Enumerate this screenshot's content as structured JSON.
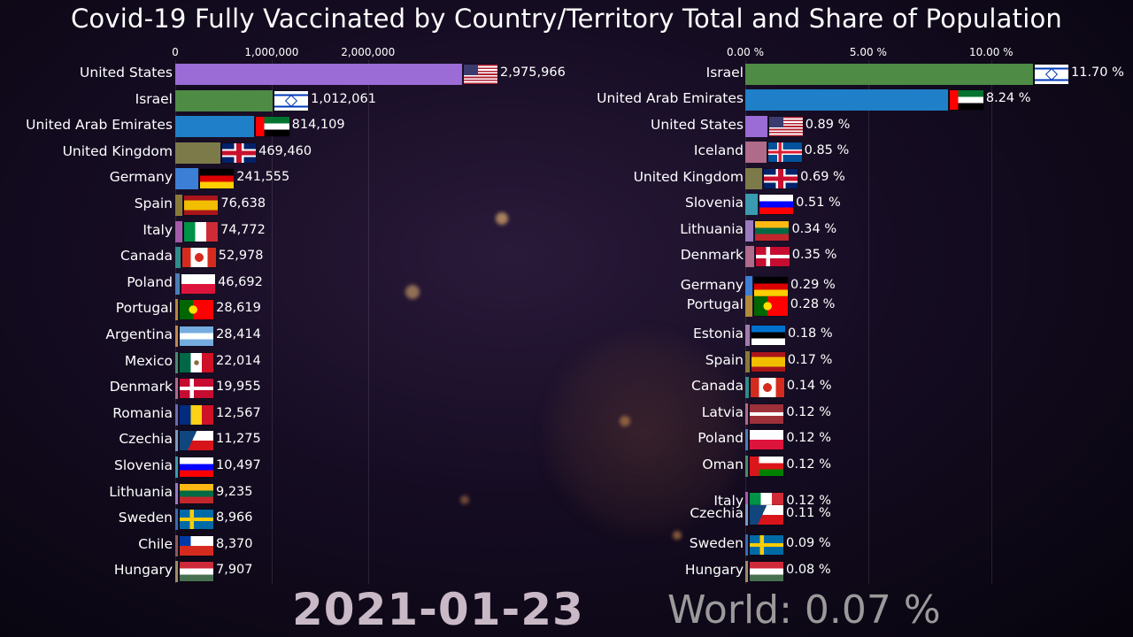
{
  "title": "Covid-19 Fully Vaccinated by Country/Territory Total and Share of Population",
  "date": "2021-01-23",
  "world": "World: 0.07 %",
  "chart_data": [
    {
      "type": "bar",
      "orientation": "horizontal",
      "xlim": [
        0,
        3000000
      ],
      "ticks": [
        {
          "value": 0,
          "label": "0"
        },
        {
          "value": 1000000,
          "label": "1,000,000"
        },
        {
          "value": 2000000,
          "label": "2,000,000"
        }
      ],
      "rows": [
        {
          "country": "United States",
          "value": 2975966,
          "label": "2,975,966",
          "color": "#9b6bd6",
          "flag": "us"
        },
        {
          "country": "Israel",
          "value": 1012061,
          "label": "1,012,061",
          "color": "#4e8b45",
          "flag": "il"
        },
        {
          "country": "United Arab Emirates",
          "value": 814109,
          "label": "814,109",
          "color": "#1f7fc8",
          "flag": "ae"
        },
        {
          "country": "United Kingdom",
          "value": 469460,
          "label": "469,460",
          "color": "#7d7a4a",
          "flag": "gb"
        },
        {
          "country": "Germany",
          "value": 241555,
          "label": "241,555",
          "color": "#3b7fd6",
          "flag": "de"
        },
        {
          "country": "Spain",
          "value": 76638,
          "label": "76,638",
          "color": "#8a7a3a",
          "flag": "es"
        },
        {
          "country": "Italy",
          "value": 74772,
          "label": "74,772",
          "color": "#a45aa8",
          "flag": "it"
        },
        {
          "country": "Canada",
          "value": 52978,
          "label": "52,978",
          "color": "#2e8c8c",
          "flag": "ca"
        },
        {
          "country": "Poland",
          "value": 46692,
          "label": "46,692",
          "color": "#4a7fb5",
          "flag": "pl"
        },
        {
          "country": "Portugal",
          "value": 28619,
          "label": "28,619",
          "color": "#b28a3a",
          "flag": "pt"
        },
        {
          "country": "Argentina",
          "value": 28414,
          "label": "28,414",
          "color": "#c08a4a",
          "flag": "ar"
        },
        {
          "country": "Mexico",
          "value": 22014,
          "label": "22,014",
          "color": "#4a8a6a",
          "flag": "mx"
        },
        {
          "country": "Denmark",
          "value": 19955,
          "label": "19,955",
          "color": "#b06a8a",
          "flag": "dk"
        },
        {
          "country": "Romania",
          "value": 12567,
          "label": "12,567",
          "color": "#6a6ab0",
          "flag": "ro"
        },
        {
          "country": "Czechia",
          "value": 11275,
          "label": "11,275",
          "color": "#7a9ac0",
          "flag": "cz"
        },
        {
          "country": "Slovenia",
          "value": 10497,
          "label": "10,497",
          "color": "#3a9ab0",
          "flag": "si"
        },
        {
          "country": "Lithuania",
          "value": 9235,
          "label": "9,235",
          "color": "#9a7ac0",
          "flag": "lt"
        },
        {
          "country": "Sweden",
          "value": 8966,
          "label": "8,966",
          "color": "#3a6ab0",
          "flag": "se"
        },
        {
          "country": "Chile",
          "value": 8370,
          "label": "8,370",
          "color": "#8a5a5a",
          "flag": "cl"
        },
        {
          "country": "Hungary",
          "value": 7907,
          "label": "7,907",
          "color": "#a08a6a",
          "flag": "hu"
        }
      ]
    },
    {
      "type": "bar",
      "orientation": "horizontal",
      "xlim": [
        0,
        12.0
      ],
      "ticks": [
        {
          "value": 0,
          "label": "0.00 %"
        },
        {
          "value": 5,
          "label": "5.00 %"
        },
        {
          "value": 10,
          "label": "10.00 %"
        }
      ],
      "rows": [
        {
          "country": "Israel",
          "value": 11.7,
          "label": "11.70 %",
          "color": "#4e8b45",
          "flag": "il"
        },
        {
          "country": "United Arab Emirates",
          "value": 8.24,
          "label": "8.24 %",
          "color": "#1f7fc8",
          "flag": "ae"
        },
        {
          "country": "United States",
          "value": 0.89,
          "label": "0.89 %",
          "color": "#9b6bd6",
          "flag": "us"
        },
        {
          "country": "Iceland",
          "value": 0.85,
          "label": "0.85 %",
          "color": "#b06a8a",
          "flag": "is"
        },
        {
          "country": "United Kingdom",
          "value": 0.69,
          "label": "0.69 %",
          "color": "#7d7a4a",
          "flag": "gb"
        },
        {
          "country": "Slovenia",
          "value": 0.51,
          "label": "0.51 %",
          "color": "#3a9ab0",
          "flag": "si"
        },
        {
          "country": "Lithuania",
          "value": 0.34,
          "label": "0.34 %",
          "color": "#9a7ac0",
          "flag": "lt"
        },
        {
          "country": "Denmark",
          "value": 0.35,
          "label": "0.35 %",
          "color": "#b06a8a",
          "flag": "dk"
        },
        {
          "country": "Germany",
          "value": 0.29,
          "label": "0.29 %",
          "color": "#3b7fd6",
          "flag": "de"
        },
        {
          "country": "Portugal",
          "value": 0.28,
          "label": "0.28 %",
          "color": "#b28a3a",
          "flag": "pt"
        },
        {
          "country": "Estonia",
          "value": 0.18,
          "label": "0.18 %",
          "color": "#a07ab0",
          "flag": "ee"
        },
        {
          "country": "Spain",
          "value": 0.17,
          "label": "0.17 %",
          "color": "#8a7a3a",
          "flag": "es"
        },
        {
          "country": "Canada",
          "value": 0.14,
          "label": "0.14 %",
          "color": "#2e8c8c",
          "flag": "ca"
        },
        {
          "country": "Latvia",
          "value": 0.12,
          "label": "0.12 %",
          "color": "#b06a8a",
          "flag": "lv"
        },
        {
          "country": "Poland",
          "value": 0.12,
          "label": "0.12 %",
          "color": "#4a7fb5",
          "flag": "pl"
        },
        {
          "country": "Oman",
          "value": 0.12,
          "label": "0.12 %",
          "color": "#4a8a6a",
          "flag": "om"
        },
        {
          "country": "Italy",
          "value": 0.12,
          "label": "0.12 %",
          "color": "#a45aa8",
          "flag": "it"
        },
        {
          "country": "Czechia",
          "value": 0.11,
          "label": "0.11 %",
          "color": "#7a9ac0",
          "flag": "cz"
        },
        {
          "country": "Sweden",
          "value": 0.09,
          "label": "0.09 %",
          "color": "#3a6ab0",
          "flag": "se"
        },
        {
          "country": "Hungary",
          "value": 0.08,
          "label": "0.08 %",
          "color": "#a08a6a",
          "flag": "hu"
        }
      ]
    }
  ]
}
